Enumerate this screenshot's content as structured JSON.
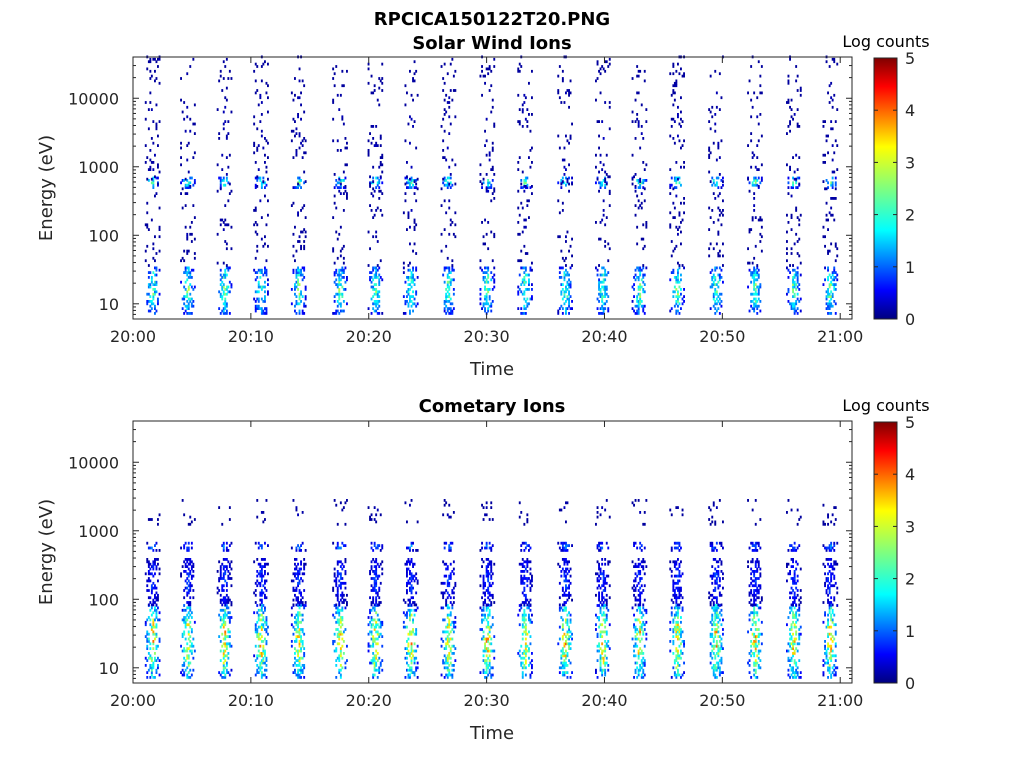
{
  "figure_title": "RPCICA150122T20.PNG",
  "chart_data": [
    {
      "type": "heatmap",
      "title": "Solar Wind Ions",
      "xlabel": "Time",
      "ylabel": "Energy (eV)",
      "x_ticks": [
        "20:00",
        "20:10",
        "20:20",
        "20:30",
        "20:40",
        "20:50",
        "21:00"
      ],
      "x_range_minutes": [
        0,
        61
      ],
      "y_scale": "log",
      "y_ticks": [
        10,
        100,
        1000,
        10000
      ],
      "y_tick_labels": [
        "10",
        "100",
        "1000",
        "10000"
      ],
      "y_range": [
        6,
        40000
      ],
      "colorbar": {
        "label": "Log counts",
        "range": [
          0,
          5
        ],
        "ticks": [
          "0",
          "1",
          "2",
          "3",
          "4",
          "5"
        ],
        "colormap": "jet"
      },
      "sweep_times_minutes": [
        1.6,
        4.6,
        7.7,
        10.8,
        14.0,
        17.5,
        20.5,
        23.5,
        26.7,
        30.0,
        33.2,
        36.6,
        39.8,
        42.9,
        46.1,
        49.4,
        52.7,
        56.0,
        59.1
      ],
      "bands": [
        {
          "energy_min": 7,
          "energy_max": 35,
          "peak_log_counts": 2.6
        },
        {
          "energy_min": 480,
          "energy_max": 700,
          "peak_log_counts": 2.5
        },
        {
          "energy_min": 35,
          "energy_max": 40000,
          "peak_log_counts": 0.3
        }
      ]
    },
    {
      "type": "heatmap",
      "title": "Cometary Ions",
      "xlabel": "Time",
      "ylabel": "Energy (eV)",
      "x_ticks": [
        "20:00",
        "20:10",
        "20:20",
        "20:30",
        "20:40",
        "20:50",
        "21:00"
      ],
      "x_range_minutes": [
        0,
        61
      ],
      "y_scale": "log",
      "y_ticks": [
        10,
        100,
        1000,
        10000
      ],
      "y_tick_labels": [
        "10",
        "100",
        "1000",
        "10000"
      ],
      "y_range": [
        6,
        40000
      ],
      "colorbar": {
        "label": "Log counts",
        "range": [
          0,
          5
        ],
        "ticks": [
          "0",
          "1",
          "2",
          "3",
          "4",
          "5"
        ],
        "colormap": "jet"
      },
      "sweep_times_minutes": [
        1.6,
        4.6,
        7.7,
        10.8,
        14.0,
        17.5,
        20.5,
        23.5,
        26.7,
        30.0,
        33.2,
        36.6,
        39.8,
        42.9,
        46.1,
        49.4,
        52.7,
        56.0,
        59.1
      ],
      "bands": [
        {
          "energy_min": 7,
          "energy_max": 80,
          "peak_log_counts": 3.6
        },
        {
          "energy_min": 80,
          "energy_max": 400,
          "peak_log_counts": 1.0
        },
        {
          "energy_min": 500,
          "energy_max": 650,
          "peak_log_counts": 1.4
        },
        {
          "energy_min": 1200,
          "energy_max": 2700,
          "peak_log_counts": 0.3
        }
      ]
    }
  ]
}
